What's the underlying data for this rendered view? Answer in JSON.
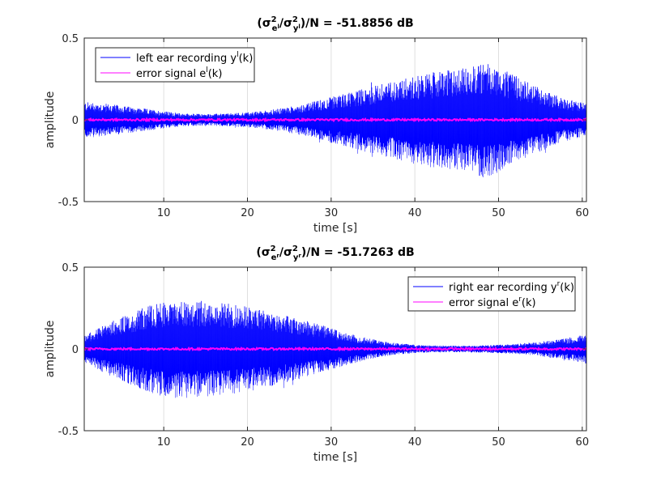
{
  "colors": {
    "recording": "#0000ff",
    "error": "#ff00ff",
    "axis": "#262626",
    "grid": "#dfdfdf"
  },
  "chart_data": [
    {
      "type": "line",
      "title": {
        "prefix": "(σ",
        "sup1": "2",
        "sub1": "e",
        "sub1b": "l",
        "slash": "/σ",
        "sup2": "2",
        "sub2": "y",
        "sub2b": "l",
        "suffix": ")/N = -51.8856 dB"
      },
      "xlabel": "time [s]",
      "ylabel": "amplitude",
      "xlim": [
        0.5,
        60.5
      ],
      "ylim": [
        -0.5,
        0.5
      ],
      "xticks": [
        10,
        20,
        30,
        40,
        50,
        60
      ],
      "ytick_labels": [
        "0.5",
        "0",
        "-0.5"
      ],
      "ytick_values": [
        0.5,
        0,
        -0.5
      ],
      "grid": true,
      "legend_position": "top-left",
      "series": [
        {
          "name": "left ear recording y",
          "name_sup": "l",
          "name_suffix": "(k)",
          "color": "#0000ff",
          "style": "dense-oscillation",
          "envelope_t": [
            0.5,
            3,
            6,
            9,
            12,
            15,
            18,
            21,
            24,
            27,
            30,
            33,
            36,
            39,
            42,
            45,
            47,
            48.5,
            50,
            52,
            54,
            56,
            58,
            60.5
          ],
          "envelope_amp": [
            0.11,
            0.1,
            0.08,
            0.06,
            0.04,
            0.035,
            0.04,
            0.05,
            0.07,
            0.1,
            0.14,
            0.18,
            0.22,
            0.26,
            0.29,
            0.31,
            0.33,
            0.36,
            0.32,
            0.27,
            0.22,
            0.17,
            0.13,
            0.1
          ]
        },
        {
          "name": "error signal e",
          "name_sup": "l",
          "name_suffix": "(k)",
          "color": "#ff00ff",
          "style": "line",
          "level": 0,
          "thickness_amp": 0.006
        }
      ]
    },
    {
      "type": "line",
      "title": {
        "prefix": "(σ",
        "sup1": "2",
        "sub1": "e",
        "sub1b": "r",
        "slash": "/σ",
        "sup2": "2",
        "sub2": "y",
        "sub2b": "r",
        "suffix": ")/N = -51.7263 dB"
      },
      "xlabel": "time [s]",
      "ylabel": "amplitude",
      "xlim": [
        0.5,
        60.5
      ],
      "ylim": [
        -0.5,
        0.5
      ],
      "xticks": [
        10,
        20,
        30,
        40,
        50,
        60
      ],
      "ytick_labels": [
        "0.5",
        "0",
        "-0.5"
      ],
      "ytick_values": [
        0.5,
        0,
        -0.5
      ],
      "grid": true,
      "legend_position": "top-right",
      "series": [
        {
          "name": "right ear recording y",
          "name_sup": "r",
          "name_suffix": "(k)",
          "color": "#0000ff",
          "style": "dense-oscillation",
          "envelope_t": [
            0.5,
            3,
            6,
            9,
            11,
            13,
            16,
            19,
            22,
            25,
            28,
            31,
            34,
            37,
            40,
            43,
            46,
            49,
            52,
            55,
            58,
            60.5
          ],
          "envelope_amp": [
            0.08,
            0.15,
            0.22,
            0.28,
            0.3,
            0.3,
            0.29,
            0.27,
            0.24,
            0.2,
            0.16,
            0.11,
            0.07,
            0.04,
            0.025,
            0.02,
            0.02,
            0.025,
            0.03,
            0.045,
            0.065,
            0.09
          ]
        },
        {
          "name": "error signal e",
          "name_sup": "r",
          "name_suffix": "(k)",
          "color": "#ff00ff",
          "style": "line",
          "level": 0,
          "thickness_amp": 0.006
        }
      ]
    }
  ]
}
